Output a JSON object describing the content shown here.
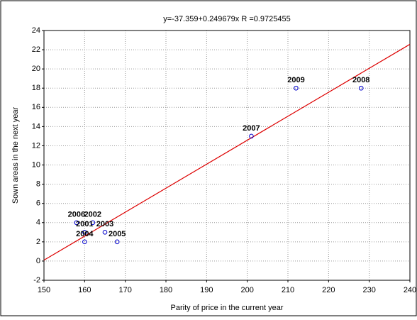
{
  "chart_data": {
    "type": "scatter",
    "title": "y=-37.359+0.249679x   R =0.9725455",
    "xlabel": "Parity of price in the current year",
    "ylabel": "Sown areas in the next year",
    "x": [
      158,
      162,
      160,
      165,
      160,
      168,
      201,
      228,
      212
    ],
    "values": [
      4,
      4,
      3,
      3,
      2,
      2,
      13,
      18,
      18
    ],
    "labels": [
      "2006",
      "2002",
      "2001",
      "2003",
      "2004",
      "2005",
      "2007",
      "2008",
      "2009"
    ],
    "color": "#0000cc",
    "trendline": {
      "intercept": -37.359,
      "slope": 0.249679,
      "color": "#dd0000"
    },
    "xlim": [
      150,
      240
    ],
    "xticks": [
      150,
      160,
      170,
      180,
      190,
      200,
      210,
      220,
      230,
      240
    ],
    "ylim": [
      -2,
      24
    ],
    "yticks": [
      -2,
      0,
      2,
      4,
      6,
      8,
      10,
      12,
      14,
      16,
      18,
      20,
      22,
      24
    ],
    "grid": true
  }
}
